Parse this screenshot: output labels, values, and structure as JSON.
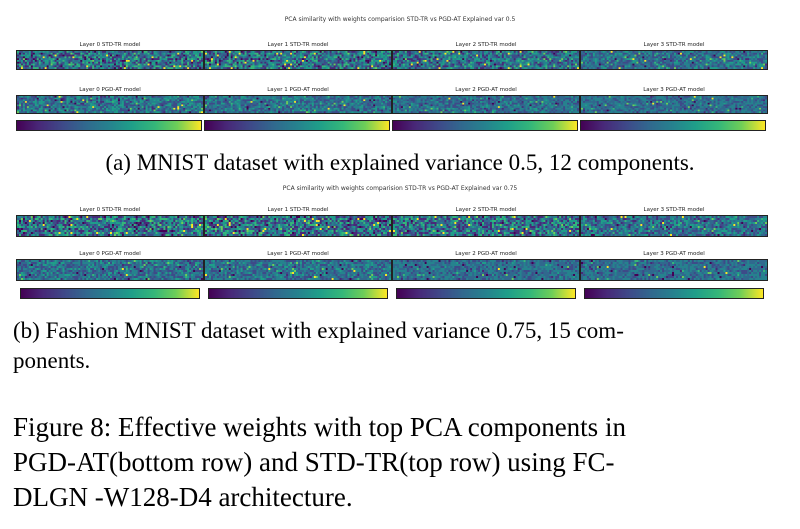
{
  "panels": [
    {
      "id": "a",
      "suptitle": "PCA similarity with weights comparision STD-TR vs PGD-AT Explained var 0.5",
      "top_row_labels": [
        "Layer 0 STD-TR model",
        "Layer 1 STD-TR model",
        "Layer 2 STD-TR model",
        "Layer 3 STD-TR model"
      ],
      "bottom_row_labels": [
        "Layer 0 PGD-AT model",
        "Layer 1 PGD-AT model",
        "Layer 2 PGD-AT model",
        "Layer 3 PGD-AT model"
      ],
      "caption": "(a) MNIST dataset with explained variance 0.5, 12 components."
    },
    {
      "id": "b",
      "suptitle": "PCA similarity with weights comparision STD-TR vs PGD-AT Explained var 0.75",
      "top_row_labels": [
        "Layer 0 STD-TR model",
        "Layer 1 STD-TR model",
        "Layer 2 STD-TR model",
        "Layer 3 STD-TR model"
      ],
      "bottom_row_labels": [
        "Layer 0 PGD-AT model",
        "Layer 1 PGD-AT model",
        "Layer 2 PGD-AT model",
        "Layer 3 PGD-AT model"
      ],
      "caption_line1": "(b) Fashion MNIST dataset with explained variance 0.75, 15 com-",
      "caption_line2": "ponents."
    }
  ],
  "figure_caption": {
    "line1": "Figure 8: Effective weights with top PCA components in",
    "line2": "PGD-AT(bottom row) and STD-TR(top row) using FC-",
    "line3": "DLGN -W128-D4 architecture."
  },
  "colors": {
    "colormap": [
      "#440154",
      "#482878",
      "#3e4a89",
      "#31688e",
      "#26828e",
      "#1f9e89",
      "#35b779",
      "#6ece58",
      "#fde725"
    ]
  }
}
